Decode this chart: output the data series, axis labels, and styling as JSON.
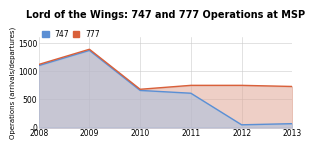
{
  "title": "Lord of the Wings: 747 and 777 Operations at MSP",
  "ylabel": "Operations (arrivals/departures)",
  "years_747": [
    2008,
    2009,
    2010,
    2011,
    2012,
    2013
  ],
  "values_747": [
    1100,
    1370,
    660,
    610,
    50,
    70
  ],
  "years_777": [
    2008,
    2009,
    2010,
    2011,
    2012,
    2013
  ],
  "values_777": [
    1120,
    1390,
    680,
    750,
    750,
    730
  ],
  "color_747": "#5b8fd4",
  "color_777": "#d9603a",
  "fill_747_color": "#a8bfdf",
  "fill_747_alpha": 0.55,
  "fill_777_color": "#e0a898",
  "fill_777_alpha": 0.55,
  "ylim": [
    0,
    1600
  ],
  "yticks": [
    0,
    500,
    1000,
    1500
  ],
  "xticks": [
    2008,
    2009,
    2010,
    2011,
    2012,
    2013
  ],
  "legend_747": "747",
  "legend_777": "777",
  "background_color": "#ffffff",
  "grid_color": "#cccccc",
  "title_fontsize": 7.0,
  "axis_fontsize": 5.0,
  "tick_fontsize": 5.5,
  "legend_fontsize": 5.5,
  "linewidth": 1.0
}
